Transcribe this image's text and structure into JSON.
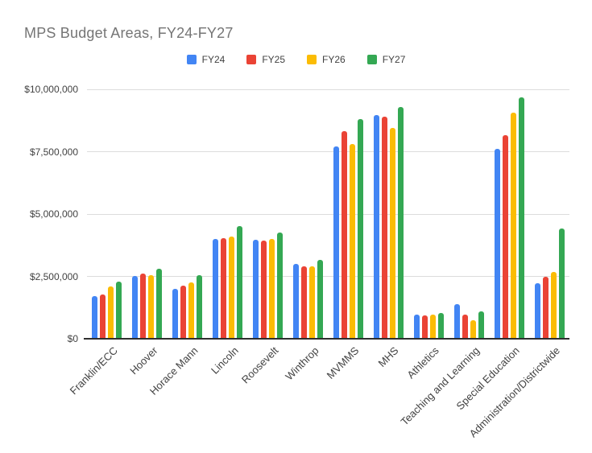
{
  "chart_data": {
    "type": "bar",
    "title": "MPS Budget Areas, FY24-FY27",
    "xlabel": "",
    "ylabel": "",
    "categories": [
      "Franklin/ECC",
      "Hoover",
      "Horace Mann",
      "Lincoln",
      "Roosevelt",
      "Winthrop",
      "MVMMS",
      "MHS",
      "Athletics",
      "Teaching and Learning",
      "Special Education",
      "Administration/Districtwide"
    ],
    "series": [
      {
        "name": "FY24",
        "color": "#4285F4",
        "values": [
          1720000,
          2530000,
          2010000,
          4010000,
          3970000,
          2990000,
          7720000,
          8960000,
          980000,
          1380000,
          7610000,
          2240000
        ]
      },
      {
        "name": "FY25",
        "color": "#EA4335",
        "values": [
          1790000,
          2600000,
          2140000,
          4030000,
          3940000,
          2920000,
          8330000,
          8900000,
          950000,
          970000,
          8150000,
          2500000
        ]
      },
      {
        "name": "FY26",
        "color": "#FBBC04",
        "values": [
          2090000,
          2560000,
          2270000,
          4110000,
          4010000,
          2920000,
          7810000,
          8450000,
          970000,
          730000,
          9070000,
          2670000
        ]
      },
      {
        "name": "FY27",
        "color": "#34A853",
        "values": [
          2300000,
          2820000,
          2550000,
          4530000,
          4270000,
          3150000,
          8810000,
          9280000,
          1040000,
          1090000,
          9680000,
          4430000
        ]
      }
    ],
    "ylim": [
      0,
      10000000
    ],
    "yticks": [
      {
        "value": 0,
        "label": "$0"
      },
      {
        "value": 2500000,
        "label": "$2,500,000"
      },
      {
        "value": 5000000,
        "label": "$5,000,000"
      },
      {
        "value": 7500000,
        "label": "$7,500,000"
      },
      {
        "value": 10000000,
        "label": "$10,000,000"
      }
    ],
    "grid": true,
    "legend_position": "top-center",
    "styles": {
      "title_color": "#757575",
      "grid_color": "#dcdcdc",
      "axis_color": "#2e2e2e",
      "tick_text_color": "#424242"
    }
  }
}
